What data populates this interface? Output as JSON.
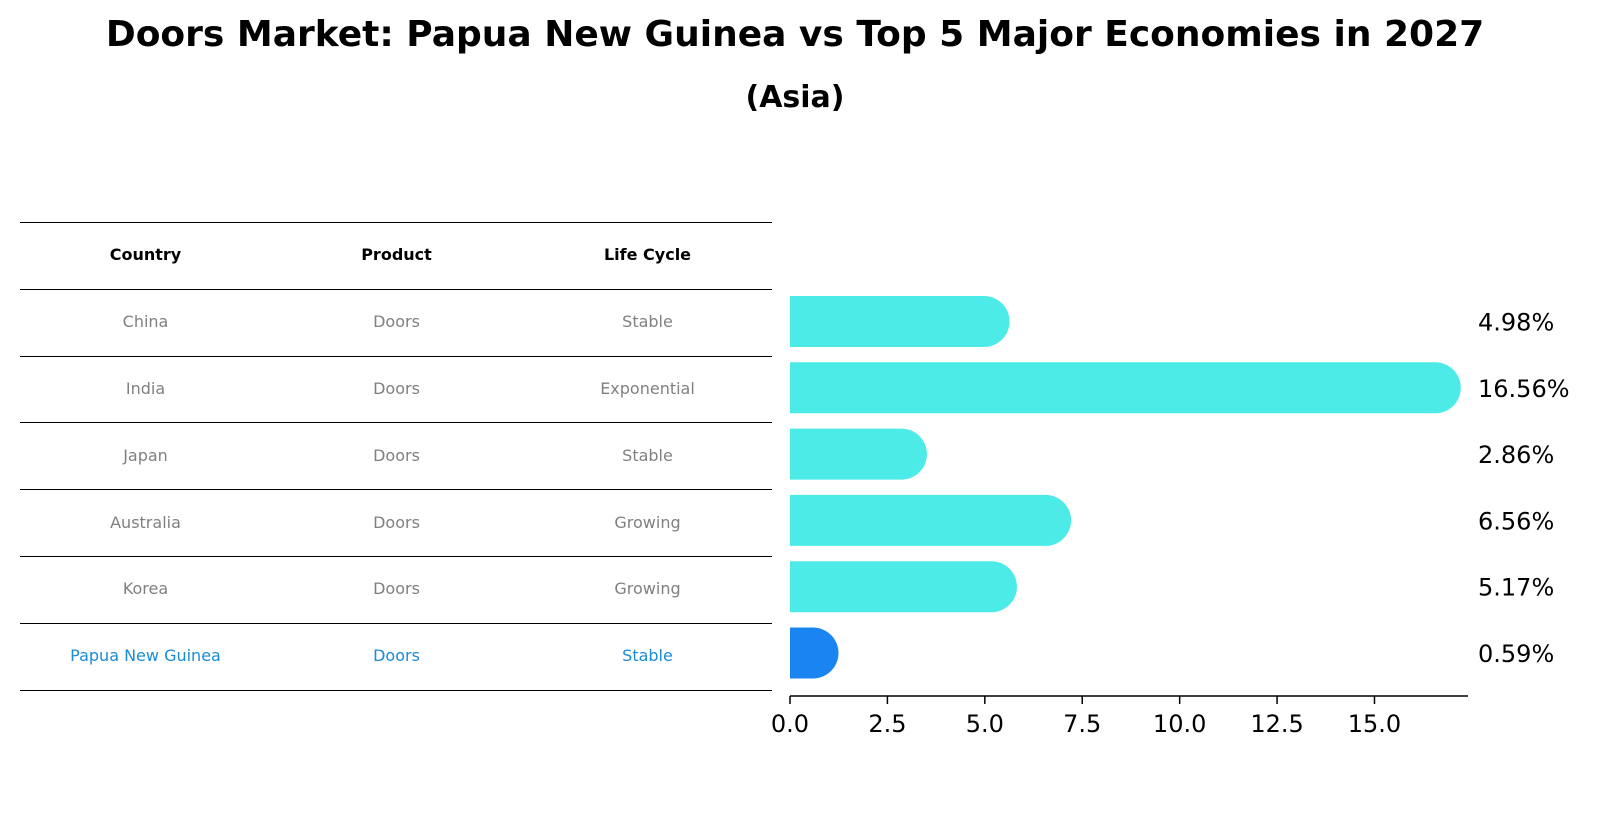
{
  "title": "Doors Market: Papua New Guinea vs Top 5 Major Economies in 2027",
  "subtitle": "(Asia)",
  "table": {
    "headers": [
      "Country",
      "Product",
      "Life Cycle"
    ],
    "rows": [
      [
        "China",
        "Doors",
        "Stable"
      ],
      [
        "India",
        "Doors",
        "Exponential"
      ],
      [
        "Japan",
        "Doors",
        "Stable"
      ],
      [
        "Australia",
        "Doors",
        "Growing"
      ],
      [
        "Korea",
        "Doors",
        "Growing"
      ],
      [
        "Papua New Guinea",
        "Doors",
        "Stable"
      ]
    ],
    "highlight_row": 5
  },
  "colors": {
    "bar": "#4cebe8",
    "highlight_bar": "#1a84f0",
    "highlight_text": "#1a8bd6",
    "muted_text": "#808080"
  },
  "chart_data": {
    "type": "bar",
    "orientation": "horizontal",
    "categories": [
      "China",
      "India",
      "Japan",
      "Australia",
      "Korea",
      "Papua New Guinea"
    ],
    "values": [
      4.98,
      16.56,
      2.86,
      6.56,
      5.17,
      0.59
    ],
    "value_labels": [
      "4.98%",
      "16.56%",
      "2.86%",
      "6.56%",
      "5.17%",
      "0.59%"
    ],
    "xlim": [
      0,
      17.4
    ],
    "xticks": [
      0.0,
      2.5,
      5.0,
      7.5,
      10.0,
      12.5,
      15.0
    ],
    "xtick_labels": [
      "0.0",
      "2.5",
      "5.0",
      "7.5",
      "10.0",
      "12.5",
      "15.0"
    ],
    "highlight_category": "Papua New Guinea",
    "xlabel": "",
    "ylabel": ""
  }
}
